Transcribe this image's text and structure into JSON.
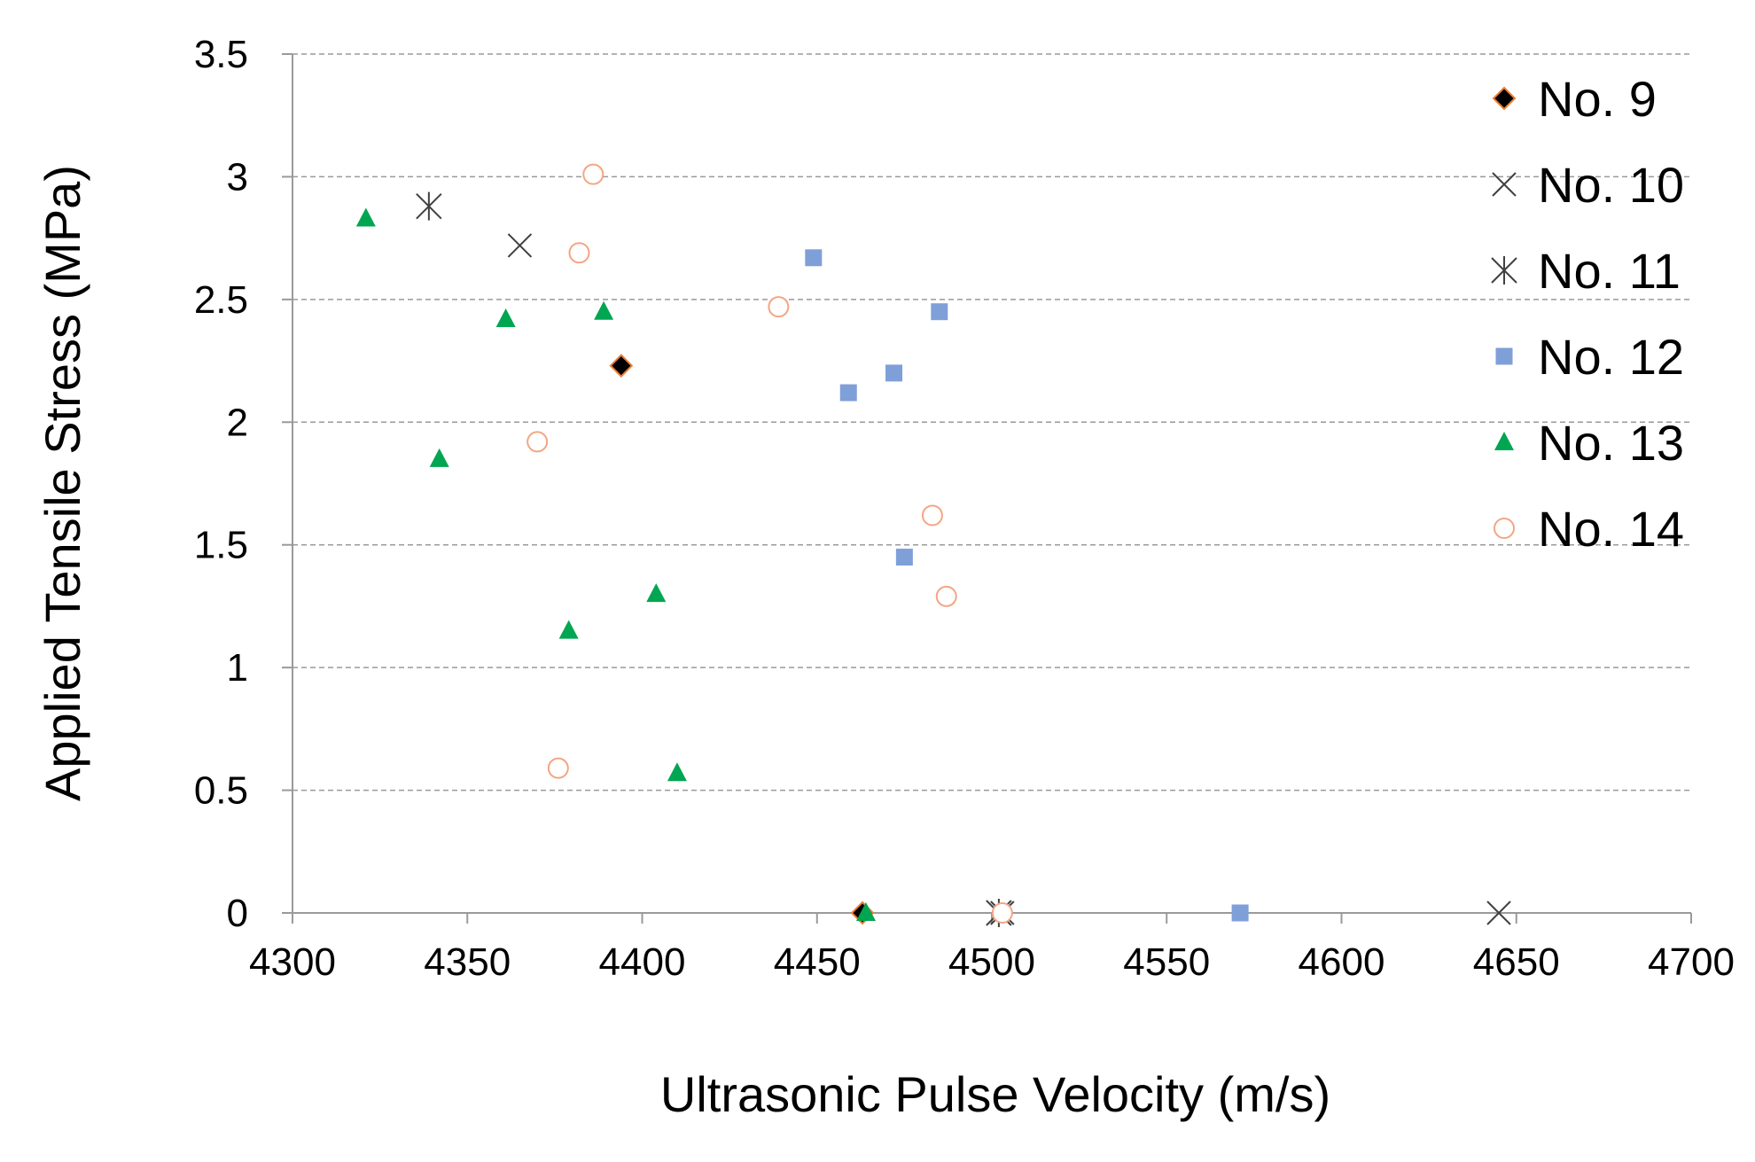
{
  "chart_data": {
    "type": "scatter",
    "title": "",
    "xlabel": "Ultrasonic Pulse Velocity (m/s)",
    "ylabel": "Applied Tensile Stress (MPa)",
    "xlim": [
      4300,
      4700
    ],
    "ylim": [
      0,
      3.5
    ],
    "xticks": [
      4300,
      4350,
      4400,
      4450,
      4500,
      4550,
      4600,
      4650,
      4700
    ],
    "yticks": [
      0,
      0.5,
      1,
      1.5,
      2,
      2.5,
      3,
      3.5
    ],
    "xtick_labels": [
      "4300",
      "4350",
      "4400",
      "4450",
      "4500",
      "4550",
      "4600",
      "4650",
      "4700"
    ],
    "ytick_labels": [
      "0",
      "0.5",
      "1",
      "1.5",
      "2",
      "2.5",
      "3",
      "3.5"
    ],
    "grid": "horizontal dashed",
    "legend_position": "top-right",
    "series": [
      {
        "name": "No. 9",
        "marker": "diamond",
        "color": "#000000",
        "edge": "#ED7D31",
        "points": [
          [
            4394,
            2.23
          ],
          [
            4463,
            0.0
          ]
        ]
      },
      {
        "name": "No. 10",
        "marker": "x",
        "color": "#404040",
        "points": [
          [
            4365,
            2.72
          ],
          [
            4503,
            0.0
          ],
          [
            4645,
            0.0
          ]
        ]
      },
      {
        "name": "No. 11",
        "marker": "star",
        "color": "#404040",
        "points": [
          [
            4339,
            2.88
          ],
          [
            4502,
            0.0
          ]
        ]
      },
      {
        "name": "No. 12",
        "marker": "square",
        "color": "#7F9FD9",
        "points": [
          [
            4449,
            2.67
          ],
          [
            4485,
            2.45
          ],
          [
            4472,
            2.2
          ],
          [
            4459,
            2.12
          ],
          [
            4475,
            1.45
          ],
          [
            4571,
            0.0
          ]
        ]
      },
      {
        "name": "No. 13",
        "marker": "triangle",
        "color": "#00A651",
        "points": [
          [
            4321,
            2.83
          ],
          [
            4361,
            2.42
          ],
          [
            4389,
            2.45
          ],
          [
            4342,
            1.85
          ],
          [
            4404,
            1.3
          ],
          [
            4379,
            1.15
          ],
          [
            4410,
            0.57
          ],
          [
            4464,
            0.0
          ]
        ]
      },
      {
        "name": "No. 14",
        "marker": "circle",
        "color": "#F4A582",
        "points": [
          [
            4386,
            3.01
          ],
          [
            4382,
            2.69
          ],
          [
            4439,
            2.47
          ],
          [
            4370,
            1.92
          ],
          [
            4483,
            1.62
          ],
          [
            4487,
            1.29
          ],
          [
            4376,
            0.59
          ],
          [
            4503,
            0.0
          ]
        ]
      }
    ]
  }
}
